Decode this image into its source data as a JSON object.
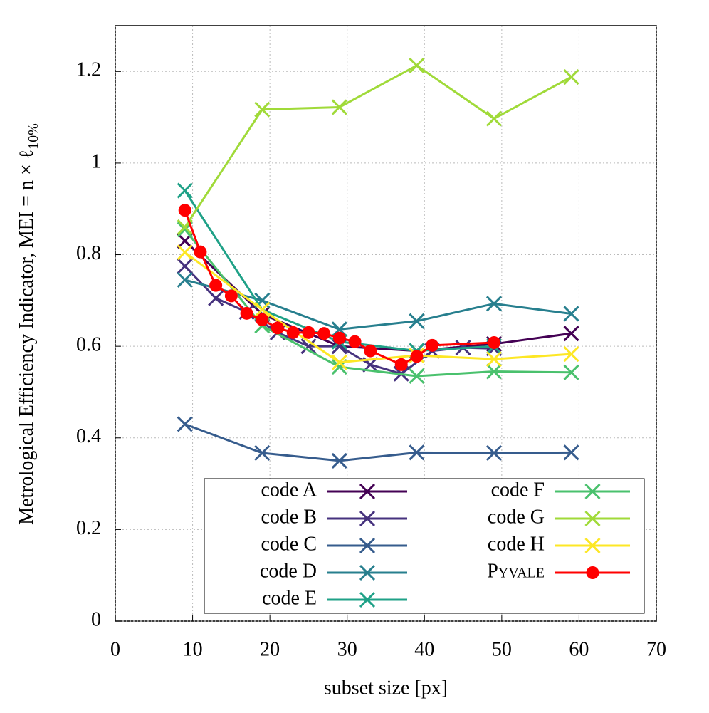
{
  "chart_data": {
    "type": "line",
    "x_label": "subset size [px]",
    "y_label": "Metrological Efficiency Indicator, MEI = n × ℓ",
    "y_label_sub": "10%",
    "xlim": [
      0,
      70
    ],
    "xticks": [
      0,
      10,
      20,
      30,
      40,
      50,
      60,
      70
    ],
    "ylim": [
      0,
      1.3
    ],
    "yticks": [
      0,
      0.2,
      0.4,
      0.6,
      0.8,
      1,
      1.2
    ],
    "grid": true,
    "series": [
      {
        "name": "code A",
        "color": "#440154",
        "marker": "x",
        "x": [
          9,
          19,
          29,
          39,
          49,
          59
        ],
        "values": [
          0.83,
          0.67,
          0.6,
          0.59,
          0.605,
          0.628
        ]
      },
      {
        "name": "code B",
        "color": "#46327e",
        "marker": "x",
        "x": [
          9,
          13,
          17,
          21,
          25,
          29,
          33,
          37,
          41,
          45,
          49
        ],
        "values": [
          0.775,
          0.705,
          0.675,
          0.63,
          0.6,
          0.6,
          0.56,
          0.54,
          0.59,
          0.597,
          0.595
        ]
      },
      {
        "name": "code C",
        "color": "#365c8d",
        "marker": "x",
        "x": [
          9,
          19,
          29,
          39,
          49,
          59
        ],
        "values": [
          0.43,
          0.367,
          0.35,
          0.368,
          0.367,
          0.368
        ]
      },
      {
        "name": "code D",
        "color": "#277f8e",
        "marker": "x",
        "x": [
          9,
          19,
          29,
          39,
          49,
          59
        ],
        "values": [
          0.745,
          0.7,
          0.637,
          0.655,
          0.693,
          0.671
        ]
      },
      {
        "name": "code E",
        "color": "#1fa187",
        "marker": "x",
        "x": [
          9,
          19,
          29,
          39,
          49
        ],
        "values": [
          0.94,
          0.68,
          0.61,
          0.59,
          0.6
        ]
      },
      {
        "name": "code F",
        "color": "#4ac16d",
        "marker": "x",
        "x": [
          9,
          19,
          29,
          39,
          49,
          59
        ],
        "values": [
          0.855,
          0.645,
          0.555,
          0.535,
          0.545,
          0.543
        ]
      },
      {
        "name": "code G",
        "color": "#a0da39",
        "marker": "x",
        "x": [
          9,
          19,
          29,
          39,
          49,
          59
        ],
        "values": [
          0.86,
          1.117,
          1.122,
          1.213,
          1.097,
          1.188
        ]
      },
      {
        "name": "code H",
        "color": "#fde725",
        "marker": "x",
        "x": [
          9,
          19,
          29,
          39,
          49,
          59
        ],
        "values": [
          0.805,
          0.68,
          0.565,
          0.58,
          0.572,
          0.583
        ]
      },
      {
        "name": "Pyvale",
        "color": "#ff0000",
        "marker": "circle",
        "x": [
          9,
          11,
          13,
          15,
          17,
          19,
          21,
          23,
          25,
          27,
          29,
          31,
          33,
          37,
          39,
          41,
          49
        ],
        "values": [
          0.897,
          0.806,
          0.733,
          0.71,
          0.672,
          0.658,
          0.64,
          0.63,
          0.63,
          0.628,
          0.618,
          0.61,
          0.59,
          0.56,
          0.578,
          0.602,
          0.608
        ]
      }
    ]
  }
}
